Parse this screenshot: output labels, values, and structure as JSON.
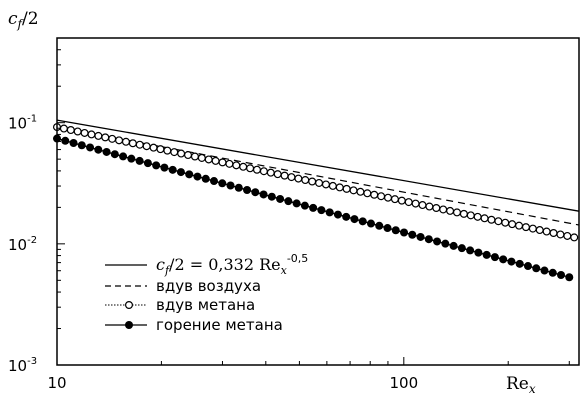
{
  "chart_data": {
    "type": "line",
    "x_scale": "log",
    "y_scale": "log",
    "xlim": [
      10,
      320
    ],
    "ylim": [
      0.001,
      0.5
    ],
    "ylabel": {
      "main": "c",
      "sub": "f",
      "rest": "/2"
    },
    "xlabel": {
      "main": "Re",
      "sub": "x"
    },
    "x_ticks": [
      {
        "value": 10,
        "label": "10"
      },
      {
        "value": 100,
        "label": "100"
      }
    ],
    "y_ticks": [
      {
        "value": 0.1,
        "base": "10",
        "exp": "-1"
      },
      {
        "value": 0.01,
        "base": "10",
        "exp": "-2"
      },
      {
        "value": 0.001,
        "base": "10",
        "exp": "-3"
      }
    ],
    "legend_position": "bottom-left",
    "series": [
      {
        "key": "theory",
        "style": "solid",
        "legend": {
          "main": "c",
          "sub": "f",
          "rest": "/2 = 0,332 Re",
          "sub2": "x",
          "sup": "-0,5"
        },
        "x": [
          10,
          320
        ],
        "y": [
          0.105,
          0.0186
        ]
      },
      {
        "key": "air",
        "style": "dashed",
        "legend": {
          "text": "вдув воздуха"
        },
        "x": [
          10,
          320
        ],
        "y": [
          0.092,
          0.0143
        ]
      },
      {
        "key": "methane",
        "style": "open-circles",
        "legend": {
          "text": "вдув метана"
        },
        "x": [
          10,
          310
        ],
        "y": [
          0.092,
          0.0113
        ]
      },
      {
        "key": "combustion",
        "style": "filled-circles",
        "legend": {
          "text": "горение метана"
        },
        "x": [
          10,
          300
        ],
        "y": [
          0.074,
          0.0053
        ]
      }
    ]
  }
}
